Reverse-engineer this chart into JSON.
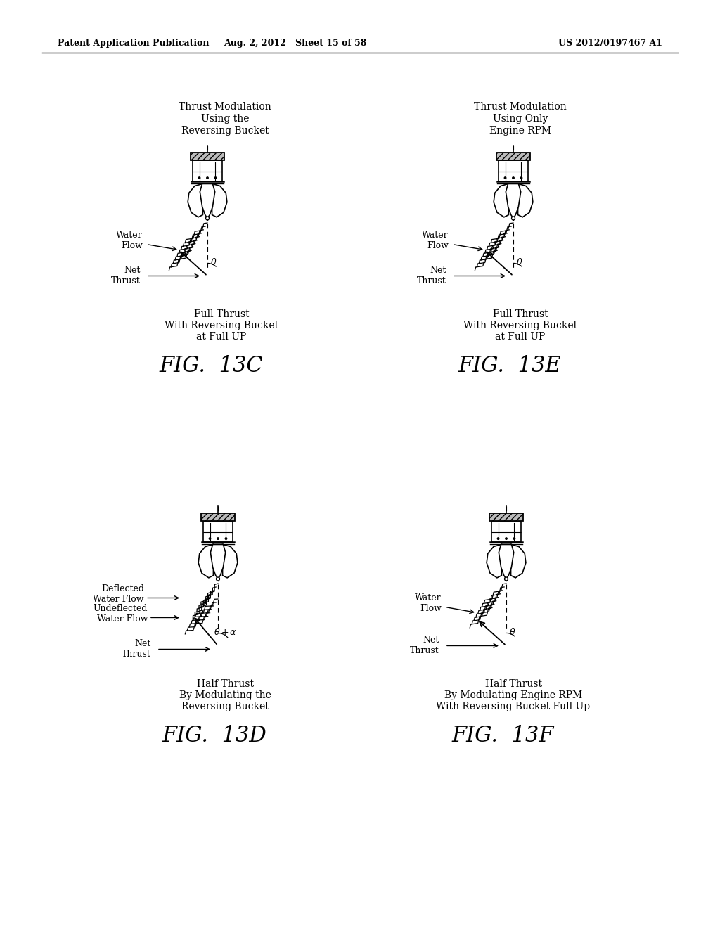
{
  "bg_color": "#ffffff",
  "header_left": "Patent Application Publication",
  "header_mid": "Aug. 2, 2012   Sheet 15 of 58",
  "header_right": "US 2012/0197467 A1",
  "fig13c_title": [
    "Thrust Modulation",
    "Using the",
    "Reversing Bucket"
  ],
  "fig13e_title": [
    "Thrust Modulation",
    "Using Only",
    "Engine RPM"
  ],
  "fig13c_caption": [
    "Full Thrust",
    "With Reversing Bucket",
    "at Full UP"
  ],
  "fig13e_caption": [
    "Full Thrust",
    "With Reversing Bucket",
    "at Full UP"
  ],
  "fig13d_deflected": "Deflected\nWater Flow",
  "fig13d_undeflected": "Undeflected\nWater Flow",
  "fig13d_caption": [
    "Half Thrust",
    "By Modulating the",
    "Reversing Bucket"
  ],
  "fig13f_caption": [
    "Half Thrust",
    "By Modulating Engine RPM",
    "With Reversing Bucket Full Up"
  ],
  "water_flow_label": "Water\nFlow",
  "net_thrust_label": "Net\nThrust",
  "fig13c_label": "FIG.  13C",
  "fig13e_label": "FIG.  13E",
  "fig13d_label": "FIG.  13D",
  "fig13f_label": "FIG.  13F"
}
